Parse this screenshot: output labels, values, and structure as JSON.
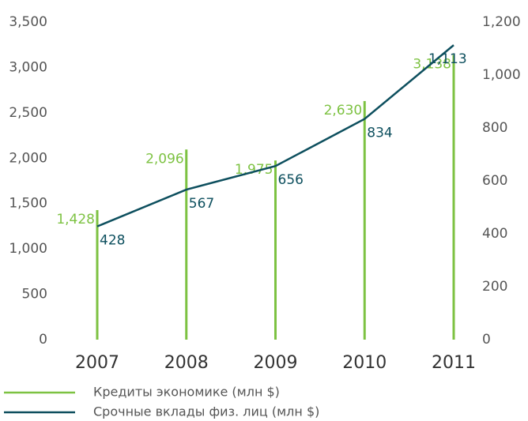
{
  "chart_data": {
    "type": "bar-line",
    "categories": [
      "2007",
      "2008",
      "2009",
      "2010",
      "2011"
    ],
    "series": [
      {
        "name": "Кредиты экономике (млн $)",
        "color": "#7dc242",
        "values": [
          1428,
          2096,
          1975,
          2630,
          3138
        ],
        "value_labels": [
          "1,428",
          "2,096",
          "1,975",
          "2,630",
          "3,138"
        ]
      },
      {
        "name": "Срочные вклады физ. лиц (млн $)",
        "color": "#0d4f5e",
        "axis": "y2",
        "values": [
          428,
          567,
          656,
          834,
          1113
        ],
        "value_labels": [
          "428",
          "567",
          "656",
          "834",
          "1,113"
        ]
      }
    ],
    "ylim": [
      0,
      3500
    ],
    "yticks": [
      0,
      500,
      {
        "value": 1000,
        "label": "1,000"
      },
      {
        "value": 1500,
        "label": "1,500"
      },
      {
        "value": 2000,
        "label": "2,000"
      },
      {
        "value": 2500,
        "label": "2,500"
      },
      {
        "value": 3000,
        "label": "3,000"
      },
      {
        "value": 3500,
        "label": "3,500"
      }
    ],
    "y2lim": [
      0,
      1200
    ],
    "y2ticks": [
      0,
      200,
      400,
      600,
      800,
      {
        "value": 1000,
        "label": "1,000"
      },
      {
        "value": 1200,
        "label": "1,200"
      }
    ]
  }
}
